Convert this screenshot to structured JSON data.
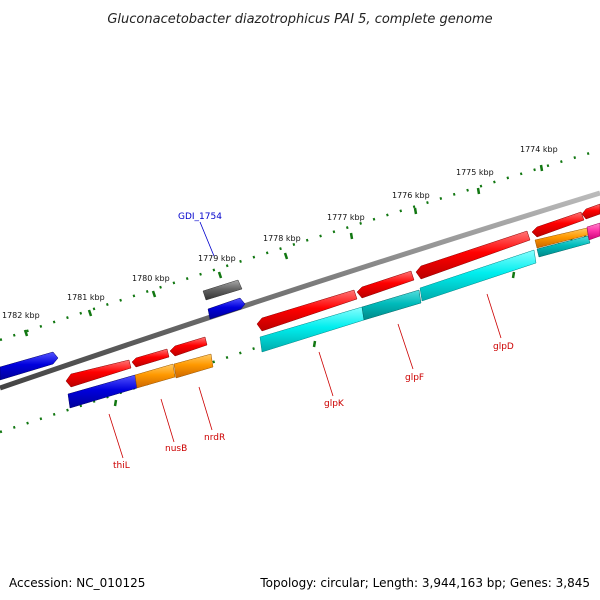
{
  "title": "Gluconacetobacter diazotrophicus PAI 5, complete genome",
  "footer": {
    "accession": "Accession: NC_010125",
    "summary": "Topology: circular; Length: 3,944,163 bp; Genes: 3,845"
  },
  "ruler": {
    "labels": [
      "1782 kbp",
      "1781 kbp",
      "1780 kbp",
      "1779 kbp",
      "1778 kbp",
      "1777 kbp",
      "1776 kbp",
      "1775 kbp",
      "1774 kbp"
    ]
  },
  "genes": [
    {
      "name": "thiL",
      "color": "#0000dd"
    },
    {
      "name": "nusB",
      "color": "#ff9900"
    },
    {
      "name": "nrdR",
      "color": "#ff9900"
    },
    {
      "name": "glpK",
      "color": "#00e5e5"
    },
    {
      "name": "glpF",
      "color": "#00bbbb"
    },
    {
      "name": "glpD",
      "color": "#00e5e5"
    }
  ],
  "other_labels": {
    "gdi": "GDI_1754"
  },
  "colors": {
    "cds_red": "#ff0000",
    "blue": "#0000dd",
    "orange": "#ff9900",
    "cyan": "#00e5e5",
    "teal": "#00bbbb",
    "gray": "#666666",
    "magenta": "#ff33aa",
    "ticks": "#117711",
    "backbone": "#888888"
  }
}
